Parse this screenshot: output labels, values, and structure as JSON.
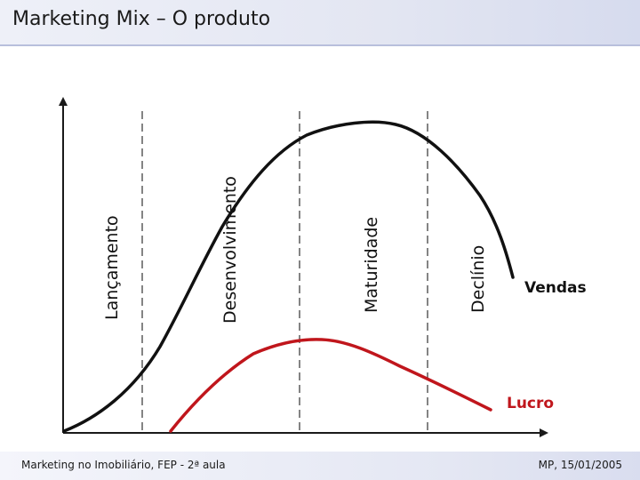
{
  "slide": {
    "title": "Marketing Mix – O produto"
  },
  "diagram": {
    "stages": [
      "Lançamento",
      "Desenvolvimento",
      "Maturidade",
      "Declínio"
    ],
    "curves": {
      "sales_label": "Vendas",
      "profit_label": "Lucro"
    },
    "colors": {
      "sales": "#111111",
      "profit": "#c0161c",
      "axis": "#1a1a1a",
      "divider": "#333333"
    }
  },
  "footer": {
    "left": "Marketing no Imobiliário, FEP - 2ª aula",
    "right": "MP, 15/01/2005"
  }
}
